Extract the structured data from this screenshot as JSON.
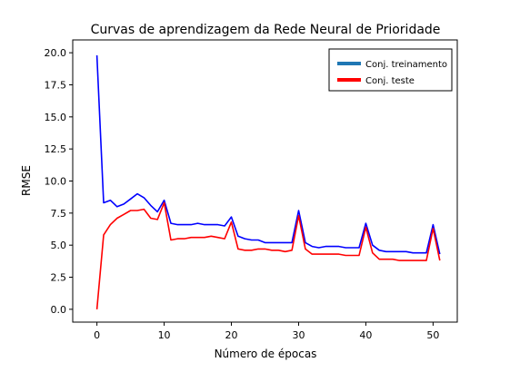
{
  "chart_data": {
    "type": "line",
    "title": "Curvas de aprendizagem da Rede Neural de Prioridade",
    "xlabel": "Número de épocas",
    "ylabel": "RMSE",
    "xlim": [
      -3.6,
      53.6
    ],
    "ylim": [
      -1.0,
      21.0
    ],
    "xticks": [
      0,
      10,
      20,
      30,
      40,
      50
    ],
    "xtick_labels": [
      "0",
      "10",
      "20",
      "30",
      "40",
      "50"
    ],
    "yticks": [
      0.0,
      2.5,
      5.0,
      7.5,
      10.0,
      12.5,
      15.0,
      17.5,
      20.0
    ],
    "ytick_labels": [
      "0.0",
      "2.5",
      "5.0",
      "7.5",
      "10.0",
      "12.5",
      "15.0",
      "17.5",
      "20.0"
    ],
    "grid": false,
    "legend_position": "top-right",
    "series": [
      {
        "name": "Conj. treinamento",
        "color": "#0000ff",
        "legend_color": "#1f77b4",
        "x": [
          0,
          1,
          2,
          3,
          4,
          5,
          6,
          7,
          8,
          9,
          10,
          11,
          12,
          13,
          14,
          15,
          16,
          17,
          18,
          19,
          20,
          21,
          22,
          23,
          24,
          25,
          26,
          27,
          28,
          29,
          30,
          31,
          32,
          33,
          34,
          35,
          36,
          37,
          38,
          39,
          40,
          41,
          42,
          43,
          44,
          45,
          46,
          47,
          48,
          49,
          50,
          51
        ],
        "values": [
          19.8,
          8.3,
          8.5,
          8.0,
          8.2,
          8.6,
          9.0,
          8.7,
          8.1,
          7.6,
          8.5,
          6.7,
          6.6,
          6.6,
          6.6,
          6.7,
          6.6,
          6.6,
          6.6,
          6.5,
          7.2,
          5.7,
          5.5,
          5.4,
          5.4,
          5.2,
          5.2,
          5.2,
          5.2,
          5.2,
          7.7,
          5.2,
          4.9,
          4.8,
          4.9,
          4.9,
          4.9,
          4.8,
          4.8,
          4.8,
          6.7,
          5.0,
          4.6,
          4.5,
          4.5,
          4.5,
          4.5,
          4.4,
          4.4,
          4.4,
          6.6,
          4.3
        ]
      },
      {
        "name": "Conj. teste",
        "color": "#ff0000",
        "legend_color": "#ff0000",
        "x": [
          0,
          1,
          2,
          3,
          4,
          5,
          6,
          7,
          8,
          9,
          10,
          11,
          12,
          13,
          14,
          15,
          16,
          17,
          18,
          19,
          20,
          21,
          22,
          23,
          24,
          25,
          26,
          27,
          28,
          29,
          30,
          31,
          32,
          33,
          34,
          35,
          36,
          37,
          38,
          39,
          40,
          41,
          42,
          43,
          44,
          45,
          46,
          47,
          48,
          49,
          50,
          51
        ],
        "values": [
          0.0,
          5.8,
          6.6,
          7.1,
          7.4,
          7.7,
          7.7,
          7.8,
          7.1,
          7.0,
          8.3,
          5.4,
          5.5,
          5.5,
          5.6,
          5.6,
          5.6,
          5.7,
          5.6,
          5.5,
          6.8,
          4.7,
          4.6,
          4.6,
          4.7,
          4.7,
          4.6,
          4.6,
          4.5,
          4.6,
          7.3,
          4.7,
          4.3,
          4.3,
          4.3,
          4.3,
          4.3,
          4.2,
          4.2,
          4.2,
          6.4,
          4.4,
          3.9,
          3.9,
          3.9,
          3.8,
          3.8,
          3.8,
          3.8,
          3.8,
          6.3,
          3.8
        ]
      }
    ]
  }
}
